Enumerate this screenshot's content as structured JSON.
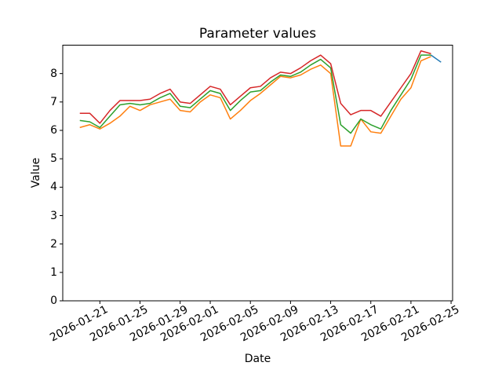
{
  "figure": {
    "title": "Parameter values",
    "xlabel": "Date",
    "ylabel": "Value",
    "background": "#ffffff",
    "axis_color": "#000000"
  },
  "chart_data": {
    "type": "line",
    "title": "Parameter values",
    "xlabel": "Date",
    "ylabel": "Value",
    "grid": false,
    "legend": "none",
    "ylim": [
      0,
      9
    ],
    "yticks": [
      0,
      1,
      2,
      3,
      4,
      5,
      6,
      7,
      8
    ],
    "xtick_labels": [
      "2026-01-21",
      "2026-01-25",
      "2026-01-29",
      "2026-02-01",
      "2026-02-05",
      "2026-02-09",
      "2026-02-13",
      "2026-02-17",
      "2026-02-21",
      "2026-02-25"
    ],
    "xtick_rotation_deg": 30,
    "xlim": [
      "2026-01-17",
      "2026-02-25"
    ],
    "x": [
      "2026-01-19",
      "2026-01-20",
      "2026-01-21",
      "2026-01-22",
      "2026-01-23",
      "2026-01-24",
      "2026-01-25",
      "2026-01-26",
      "2026-01-27",
      "2026-01-28",
      "2026-01-29",
      "2026-01-30",
      "2026-01-31",
      "2026-02-01",
      "2026-02-02",
      "2026-02-03",
      "2026-02-04",
      "2026-02-05",
      "2026-02-06",
      "2026-02-07",
      "2026-02-08",
      "2026-02-09",
      "2026-02-10",
      "2026-02-11",
      "2026-02-12",
      "2026-02-13",
      "2026-02-14",
      "2026-02-15",
      "2026-02-16",
      "2026-02-17",
      "2026-02-18",
      "2026-02-19",
      "2026-02-20",
      "2026-02-21",
      "2026-02-22",
      "2026-02-23"
    ],
    "series": [
      {
        "name": "blue-forecast",
        "color": "#1f77b4",
        "x": [
          "2026-02-23",
          "2026-02-24"
        ],
        "values": [
          8.65,
          8.4
        ]
      },
      {
        "name": "orange",
        "color": "#ff7f0e",
        "values": [
          6.1,
          6.2,
          6.05,
          6.25,
          6.5,
          6.85,
          6.7,
          6.9,
          7.0,
          7.1,
          6.7,
          6.65,
          7.0,
          7.25,
          7.15,
          6.4,
          6.7,
          7.05,
          7.3,
          7.6,
          7.9,
          7.85,
          7.95,
          8.15,
          8.3,
          8.0,
          5.45,
          5.45,
          6.4,
          5.95,
          5.9,
          6.5,
          7.1,
          7.5,
          8.45,
          8.6
        ]
      },
      {
        "name": "green",
        "color": "#2ca02c",
        "values": [
          6.35,
          6.3,
          6.1,
          6.5,
          6.9,
          6.95,
          6.9,
          6.95,
          7.15,
          7.3,
          6.85,
          6.8,
          7.1,
          7.4,
          7.3,
          6.7,
          7.05,
          7.35,
          7.4,
          7.7,
          7.95,
          7.9,
          8.05,
          8.3,
          8.5,
          8.2,
          6.2,
          5.9,
          6.4,
          6.2,
          6.05,
          6.7,
          7.25,
          7.8,
          8.65,
          8.65
        ]
      },
      {
        "name": "red",
        "color": "#d62728",
        "values": [
          6.6,
          6.6,
          6.25,
          6.7,
          7.05,
          7.05,
          7.05,
          7.1,
          7.3,
          7.45,
          7.0,
          6.95,
          7.25,
          7.55,
          7.45,
          6.9,
          7.2,
          7.5,
          7.55,
          7.85,
          8.05,
          8.0,
          8.2,
          8.45,
          8.65,
          8.35,
          6.95,
          6.55,
          6.7,
          6.7,
          6.5,
          7.0,
          7.5,
          8.0,
          8.8,
          8.7
        ]
      }
    ]
  }
}
